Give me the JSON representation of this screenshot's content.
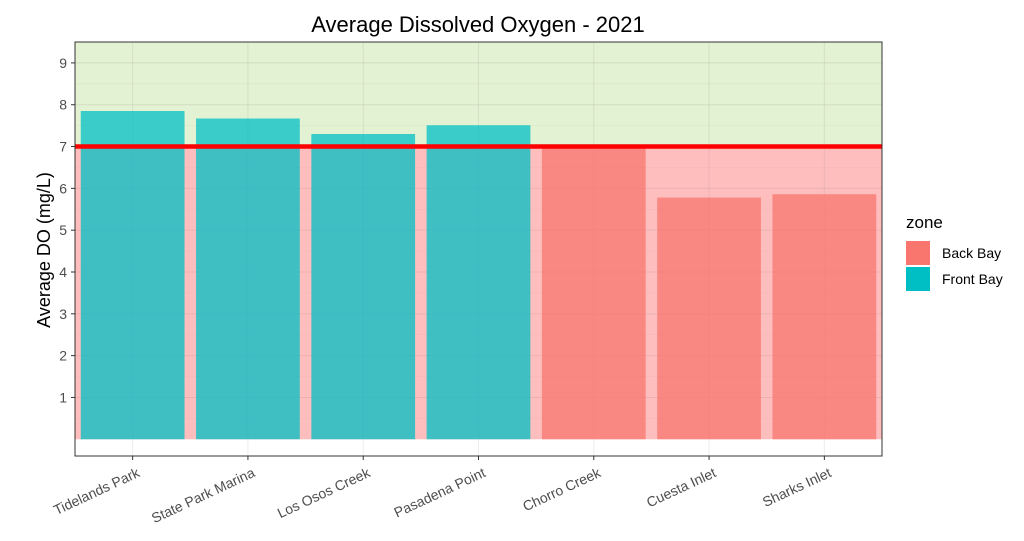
{
  "chart_data": {
    "type": "bar",
    "title": "Average Dissolved Oxygen - 2021",
    "xlabel": "",
    "ylabel": "Average DO (mg/L)",
    "ylim": [
      -0.4,
      9.5
    ],
    "yticks": [
      1,
      2,
      3,
      4,
      5,
      6,
      7,
      8,
      9
    ],
    "categories": [
      "Tidelands Park",
      "State Park Marina",
      "Los Osos Creek",
      "Pasadena Point",
      "Chorro Creek",
      "Cuesta Inlet",
      "Sharks Inlet"
    ],
    "values": [
      7.85,
      7.67,
      7.3,
      7.51,
      7.0,
      5.78,
      5.86
    ],
    "zones": [
      "Front Bay",
      "Front Bay",
      "Front Bay",
      "Front Bay",
      "Back Bay",
      "Back Bay",
      "Back Bay"
    ],
    "threshold": 7,
    "grid": true,
    "legend": {
      "title": "zone",
      "position": "right",
      "entries": [
        {
          "label": "Back Bay",
          "color": "#F8766D"
        },
        {
          "label": "Front Bay",
          "color": "#00BFC4"
        }
      ]
    },
    "colors": {
      "front_bay": "#00BFC4",
      "back_bay": "#F8766D",
      "threshold_line": "#FF0000",
      "above_band": "#E3F2D2",
      "below_band": "#FFBEBE"
    }
  }
}
